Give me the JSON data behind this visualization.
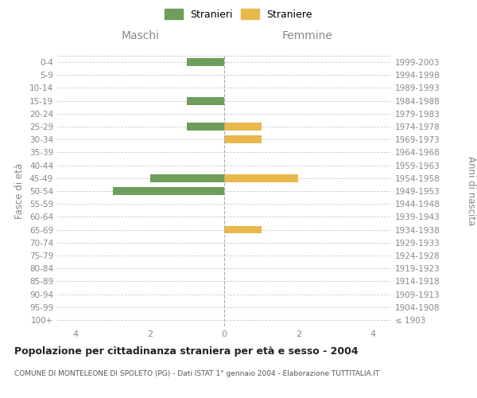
{
  "age_groups": [
    "100+",
    "95-99",
    "90-94",
    "85-89",
    "80-84",
    "75-79",
    "70-74",
    "65-69",
    "60-64",
    "55-59",
    "50-54",
    "45-49",
    "40-44",
    "35-39",
    "30-34",
    "25-29",
    "20-24",
    "15-19",
    "10-14",
    "5-9",
    "0-4"
  ],
  "birth_years": [
    "≤ 1903",
    "1904-1908",
    "1909-1913",
    "1914-1918",
    "1919-1923",
    "1924-1928",
    "1929-1933",
    "1934-1938",
    "1939-1943",
    "1944-1948",
    "1949-1953",
    "1954-1958",
    "1959-1963",
    "1964-1968",
    "1969-1973",
    "1974-1978",
    "1979-1983",
    "1984-1988",
    "1989-1993",
    "1994-1998",
    "1999-2003"
  ],
  "maschi": [
    0,
    0,
    0,
    0,
    0,
    0,
    0,
    0,
    0,
    0,
    3,
    2,
    0,
    0,
    0,
    1,
    0,
    1,
    0,
    0,
    1
  ],
  "femmine": [
    0,
    0,
    0,
    0,
    0,
    0,
    0,
    1,
    0,
    0,
    0,
    2,
    0,
    0,
    1,
    1,
    0,
    0,
    0,
    0,
    0
  ],
  "color_maschi": "#6d9e5a",
  "color_femmine": "#e8b84b",
  "xlim": 4.5,
  "title": "Popolazione per cittadinanza straniera per età e sesso - 2004",
  "subtitle": "COMUNE DI MONTELEONE DI SPOLETO (PG) - Dati ISTAT 1° gennaio 2004 - Elaborazione TUTTITALIA.IT",
  "ylabel_left": "Fasce di età",
  "ylabel_right": "Anni di nascita",
  "label_maschi": "Maschi",
  "label_femmine": "Femmine",
  "legend_maschi": "Stranieri",
  "legend_femmine": "Straniere",
  "bg_color": "#ffffff",
  "grid_color": "#cccccc",
  "tick_color": "#888888",
  "xticks": [
    -4,
    -2,
    0,
    2,
    4
  ],
  "xtick_labels": [
    "4",
    "2",
    "0",
    "2",
    "4"
  ]
}
